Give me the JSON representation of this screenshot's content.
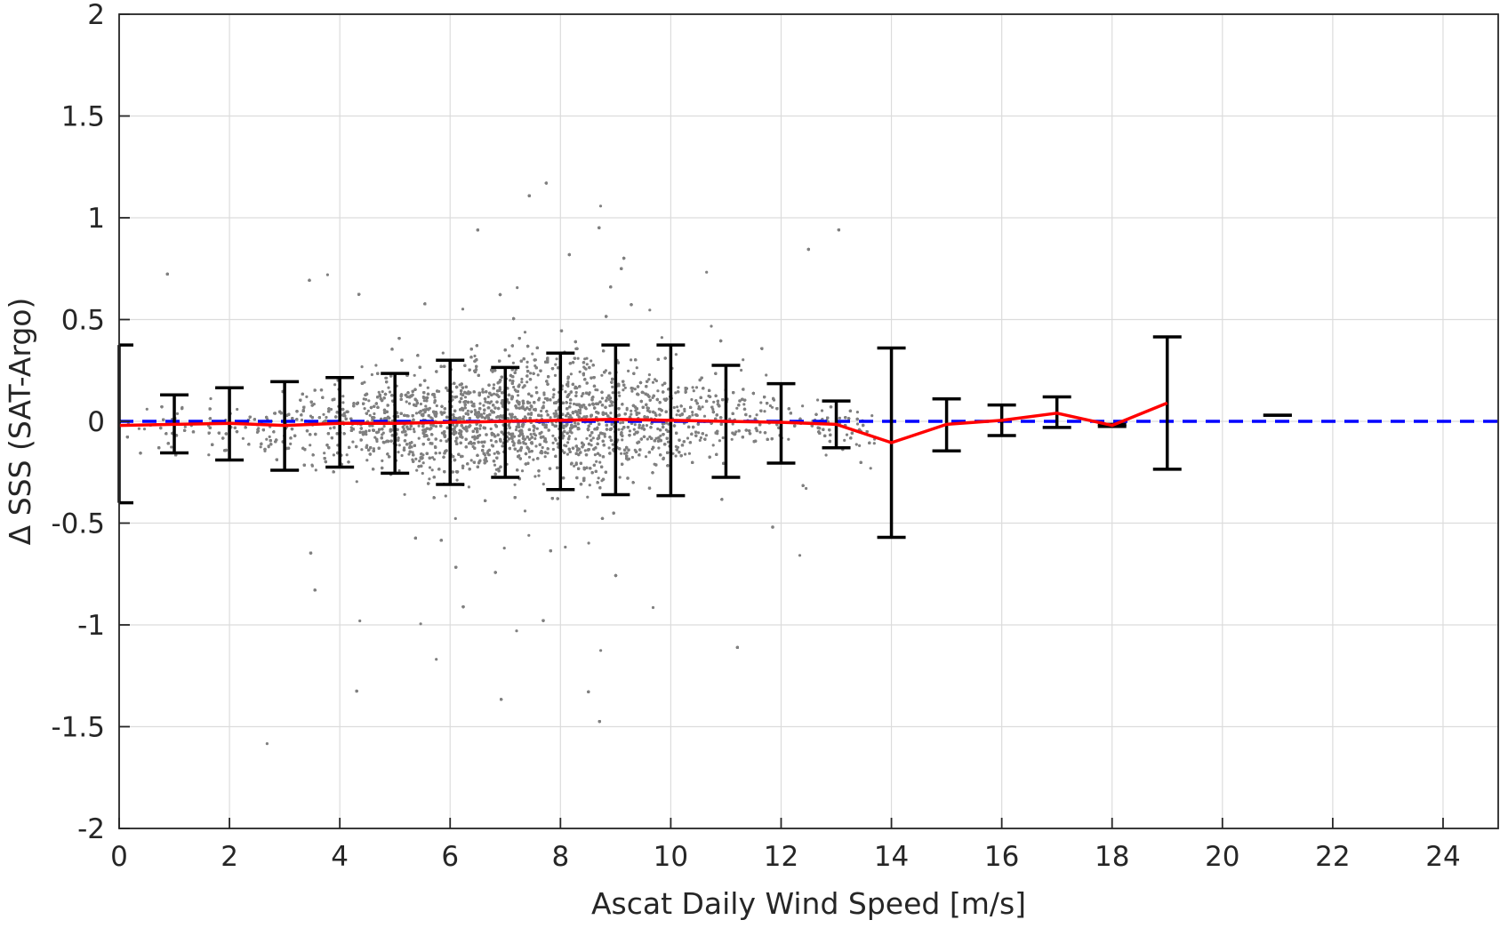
{
  "chart_data": {
    "type": "scatter",
    "title": "",
    "xlabel": "Ascat Daily Wind Speed [m/s]",
    "ylabel": "Δ SSS (SAT-Argo)",
    "xlim": [
      0,
      25
    ],
    "ylim": [
      -2,
      2
    ],
    "xticks": [
      0,
      2,
      4,
      6,
      8,
      10,
      12,
      14,
      16,
      18,
      20,
      22,
      24
    ],
    "yticks": [
      -2,
      -1.5,
      -1,
      -0.5,
      0,
      0.5,
      1,
      1.5,
      2
    ],
    "xtick_labels": [
      "0",
      "2",
      "4",
      "6",
      "8",
      "10",
      "12",
      "14",
      "16",
      "18",
      "20",
      "22",
      "24"
    ],
    "ytick_labels": [
      "-2",
      "-1.5",
      "-1",
      "-0.5",
      "0",
      "0.5",
      "1",
      "1.5",
      "2"
    ],
    "grid": true,
    "series": [
      {
        "kind": "scatter-cloud",
        "color": "#808080",
        "note_points": "dense grey point cloud centred on 0, spread widest between 4 and 10 m/s"
      },
      {
        "kind": "mean-line",
        "color": "#ff0000",
        "x": [
          0,
          1,
          2,
          3,
          4,
          5,
          6,
          7,
          8,
          9,
          10,
          11,
          12,
          13,
          14,
          15,
          16,
          17,
          18,
          19
        ],
        "y": [
          -0.02,
          -0.015,
          -0.01,
          -0.02,
          -0.01,
          -0.01,
          -0.005,
          0.0,
          0.005,
          0.01,
          0.005,
          0.0,
          -0.005,
          -0.015,
          -0.105,
          -0.015,
          0.005,
          0.04,
          -0.02,
          0.09
        ]
      },
      {
        "kind": "error-bars",
        "color": "#000000",
        "x": [
          0,
          1,
          2,
          3,
          4,
          5,
          6,
          7,
          8,
          9,
          10,
          11,
          12,
          13,
          14,
          15,
          16,
          17,
          18,
          19,
          21
        ],
        "lower": [
          -0.4,
          -0.155,
          -0.19,
          -0.24,
          -0.225,
          -0.255,
          -0.31,
          -0.275,
          -0.335,
          -0.36,
          -0.365,
          -0.275,
          -0.205,
          -0.13,
          -0.57,
          -0.145,
          -0.07,
          -0.03,
          -0.025,
          -0.235,
          0.03
        ],
        "upper": [
          0.375,
          0.13,
          0.165,
          0.195,
          0.215,
          0.235,
          0.3,
          0.265,
          0.335,
          0.375,
          0.375,
          0.275,
          0.185,
          0.1,
          0.36,
          0.11,
          0.08,
          0.12,
          -0.015,
          0.415,
          0.03
        ]
      },
      {
        "kind": "zero-reference",
        "color": "#0000ff",
        "y": 0,
        "style": "dashed"
      }
    ]
  }
}
